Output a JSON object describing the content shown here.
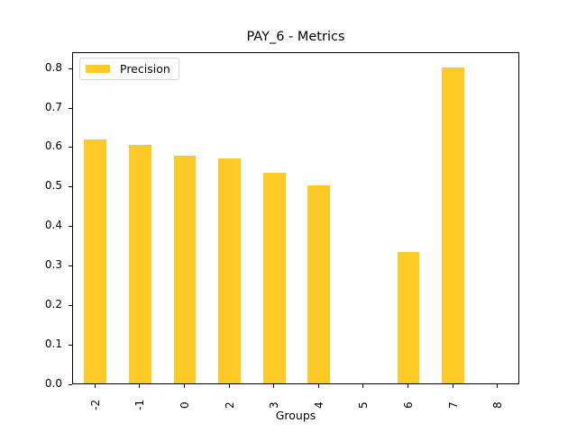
{
  "chart_data": {
    "type": "bar",
    "title": "PAY_6 - Metrics",
    "xlabel": "Groups",
    "ylabel": "",
    "categories": [
      "-2",
      "-1",
      "0",
      "2",
      "3",
      "4",
      "5",
      "6",
      "7",
      "8"
    ],
    "series": [
      {
        "name": "Precision",
        "color": "#ffc926",
        "values": [
          0.616,
          0.603,
          0.577,
          0.57,
          0.532,
          0.5,
          0.0,
          0.333,
          0.8,
          0.0
        ]
      }
    ],
    "ylim": [
      0.0,
      0.84
    ],
    "yticks": [
      "0.0",
      "0.1",
      "0.2",
      "0.3",
      "0.4",
      "0.5",
      "0.6",
      "0.7",
      "0.8"
    ],
    "grid": false,
    "legend_position": "upper left",
    "xtick_rotation": 90
  }
}
